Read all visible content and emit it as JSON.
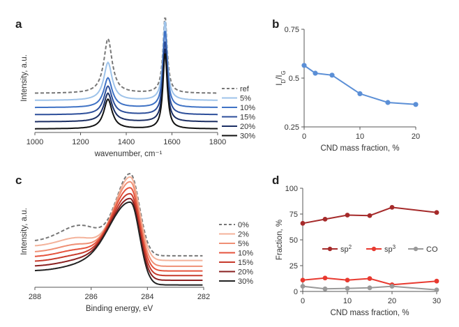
{
  "chart_data": [
    {
      "panel": "a",
      "type": "line",
      "xlabel": "wavenumber, cm⁻¹",
      "ylabel": "Intensity, a.u.",
      "xlim": [
        1000,
        1800
      ],
      "xticks": [
        "1000",
        "1200",
        "1400",
        "1600",
        "1800"
      ],
      "legend_placement": "right",
      "peaks": [
        1320,
        1570
      ],
      "series": [
        {
          "name": "ref",
          "color": "#777777",
          "dashed": true,
          "baseline": 0.33,
          "d_height": 0.46,
          "g_height": 0.65
        },
        {
          "name": "5%",
          "color": "#9ec3ea",
          "dashed": false,
          "baseline": 0.27,
          "d_height": 0.32,
          "g_height": 0.68
        },
        {
          "name": "10%",
          "color": "#3f72c5",
          "dashed": false,
          "baseline": 0.21,
          "d_height": 0.25,
          "g_height": 0.66
        },
        {
          "name": "15%",
          "color": "#2c4e9a",
          "dashed": false,
          "baseline": 0.15,
          "d_height": 0.24,
          "g_height": 0.63
        },
        {
          "name": "20%",
          "color": "#1b2e63",
          "dashed": false,
          "baseline": 0.09,
          "d_height": 0.24,
          "g_height": 0.63
        },
        {
          "name": "30%",
          "color": "#111111",
          "dashed": false,
          "baseline": 0.03,
          "d_height": 0.25,
          "g_height": 0.65
        }
      ]
    },
    {
      "panel": "b",
      "type": "line",
      "xlabel": "CND mass fraction, %",
      "ylabel_main": "I",
      "ylabel_sub1": "D",
      "ylabel_mid": "/I",
      "ylabel_sub2": "G",
      "xlim": [
        0,
        20
      ],
      "ylim": [
        0.25,
        0.75
      ],
      "xticks": [
        "0",
        "10",
        "20"
      ],
      "yticks": [
        "0.25",
        "0.5",
        "0.75"
      ],
      "color": "#5b8fd6",
      "x": [
        0,
        2,
        5,
        10,
        15,
        20
      ],
      "y": [
        0.565,
        0.525,
        0.515,
        0.42,
        0.375,
        0.365
      ]
    },
    {
      "panel": "c",
      "type": "line",
      "xlabel": "Binding energy, eV",
      "ylabel": "Intensity, a.u.",
      "xlim": [
        288,
        282
      ],
      "xticks": [
        "288",
        "286",
        "284",
        "282"
      ],
      "legend_placement": "right",
      "peak_position": 284.6,
      "series": [
        {
          "name": "0%",
          "color": "#777777",
          "dashed": true,
          "baseline": 0.27,
          "height": 0.68
        },
        {
          "name": "2%",
          "color": "#f4b29a",
          "dashed": false,
          "baseline": 0.23,
          "height": 0.7
        },
        {
          "name": "5%",
          "color": "#ef8f74",
          "dashed": false,
          "baseline": 0.18,
          "height": 0.71
        },
        {
          "name": "10%",
          "color": "#e5533c",
          "dashed": false,
          "baseline": 0.14,
          "height": 0.7
        },
        {
          "name": "15%",
          "color": "#c73a2b",
          "dashed": false,
          "baseline": 0.1,
          "height": 0.69
        },
        {
          "name": "20%",
          "color": "#8a2020",
          "dashed": false,
          "baseline": 0.06,
          "height": 0.69
        },
        {
          "name": "30%",
          "color": "#222222",
          "dashed": false,
          "baseline": 0.02,
          "height": 0.7
        }
      ]
    },
    {
      "panel": "d",
      "type": "line",
      "xlabel": "CND mass fraction, %",
      "ylabel": "Fraction, %",
      "xlim": [
        0,
        30
      ],
      "ylim": [
        0,
        100
      ],
      "xticks": [
        "0",
        "10",
        "20",
        "30"
      ],
      "yticks": [
        "0",
        "25",
        "50",
        "75",
        "100"
      ],
      "legend_placement": "center",
      "x": [
        0,
        5,
        10,
        15,
        20,
        30
      ],
      "series": [
        {
          "name_main": "sp",
          "name_sup": "2",
          "color": "#a52a2a",
          "values": [
            66,
            70,
            74,
            73.5,
            81.5,
            76.5
          ]
        },
        {
          "name_main": "sp",
          "name_sup": "3",
          "color": "#e8392f",
          "values": [
            11,
            13,
            11,
            12.5,
            6.5,
            10
          ]
        },
        {
          "name_main": "CO",
          "name_sup": "",
          "color": "#999999",
          "values": [
            5,
            2.5,
            3,
            3.5,
            5,
            1.5
          ]
        }
      ]
    }
  ],
  "labels": {
    "a": "a",
    "b": "b",
    "c": "c",
    "d": "d"
  }
}
